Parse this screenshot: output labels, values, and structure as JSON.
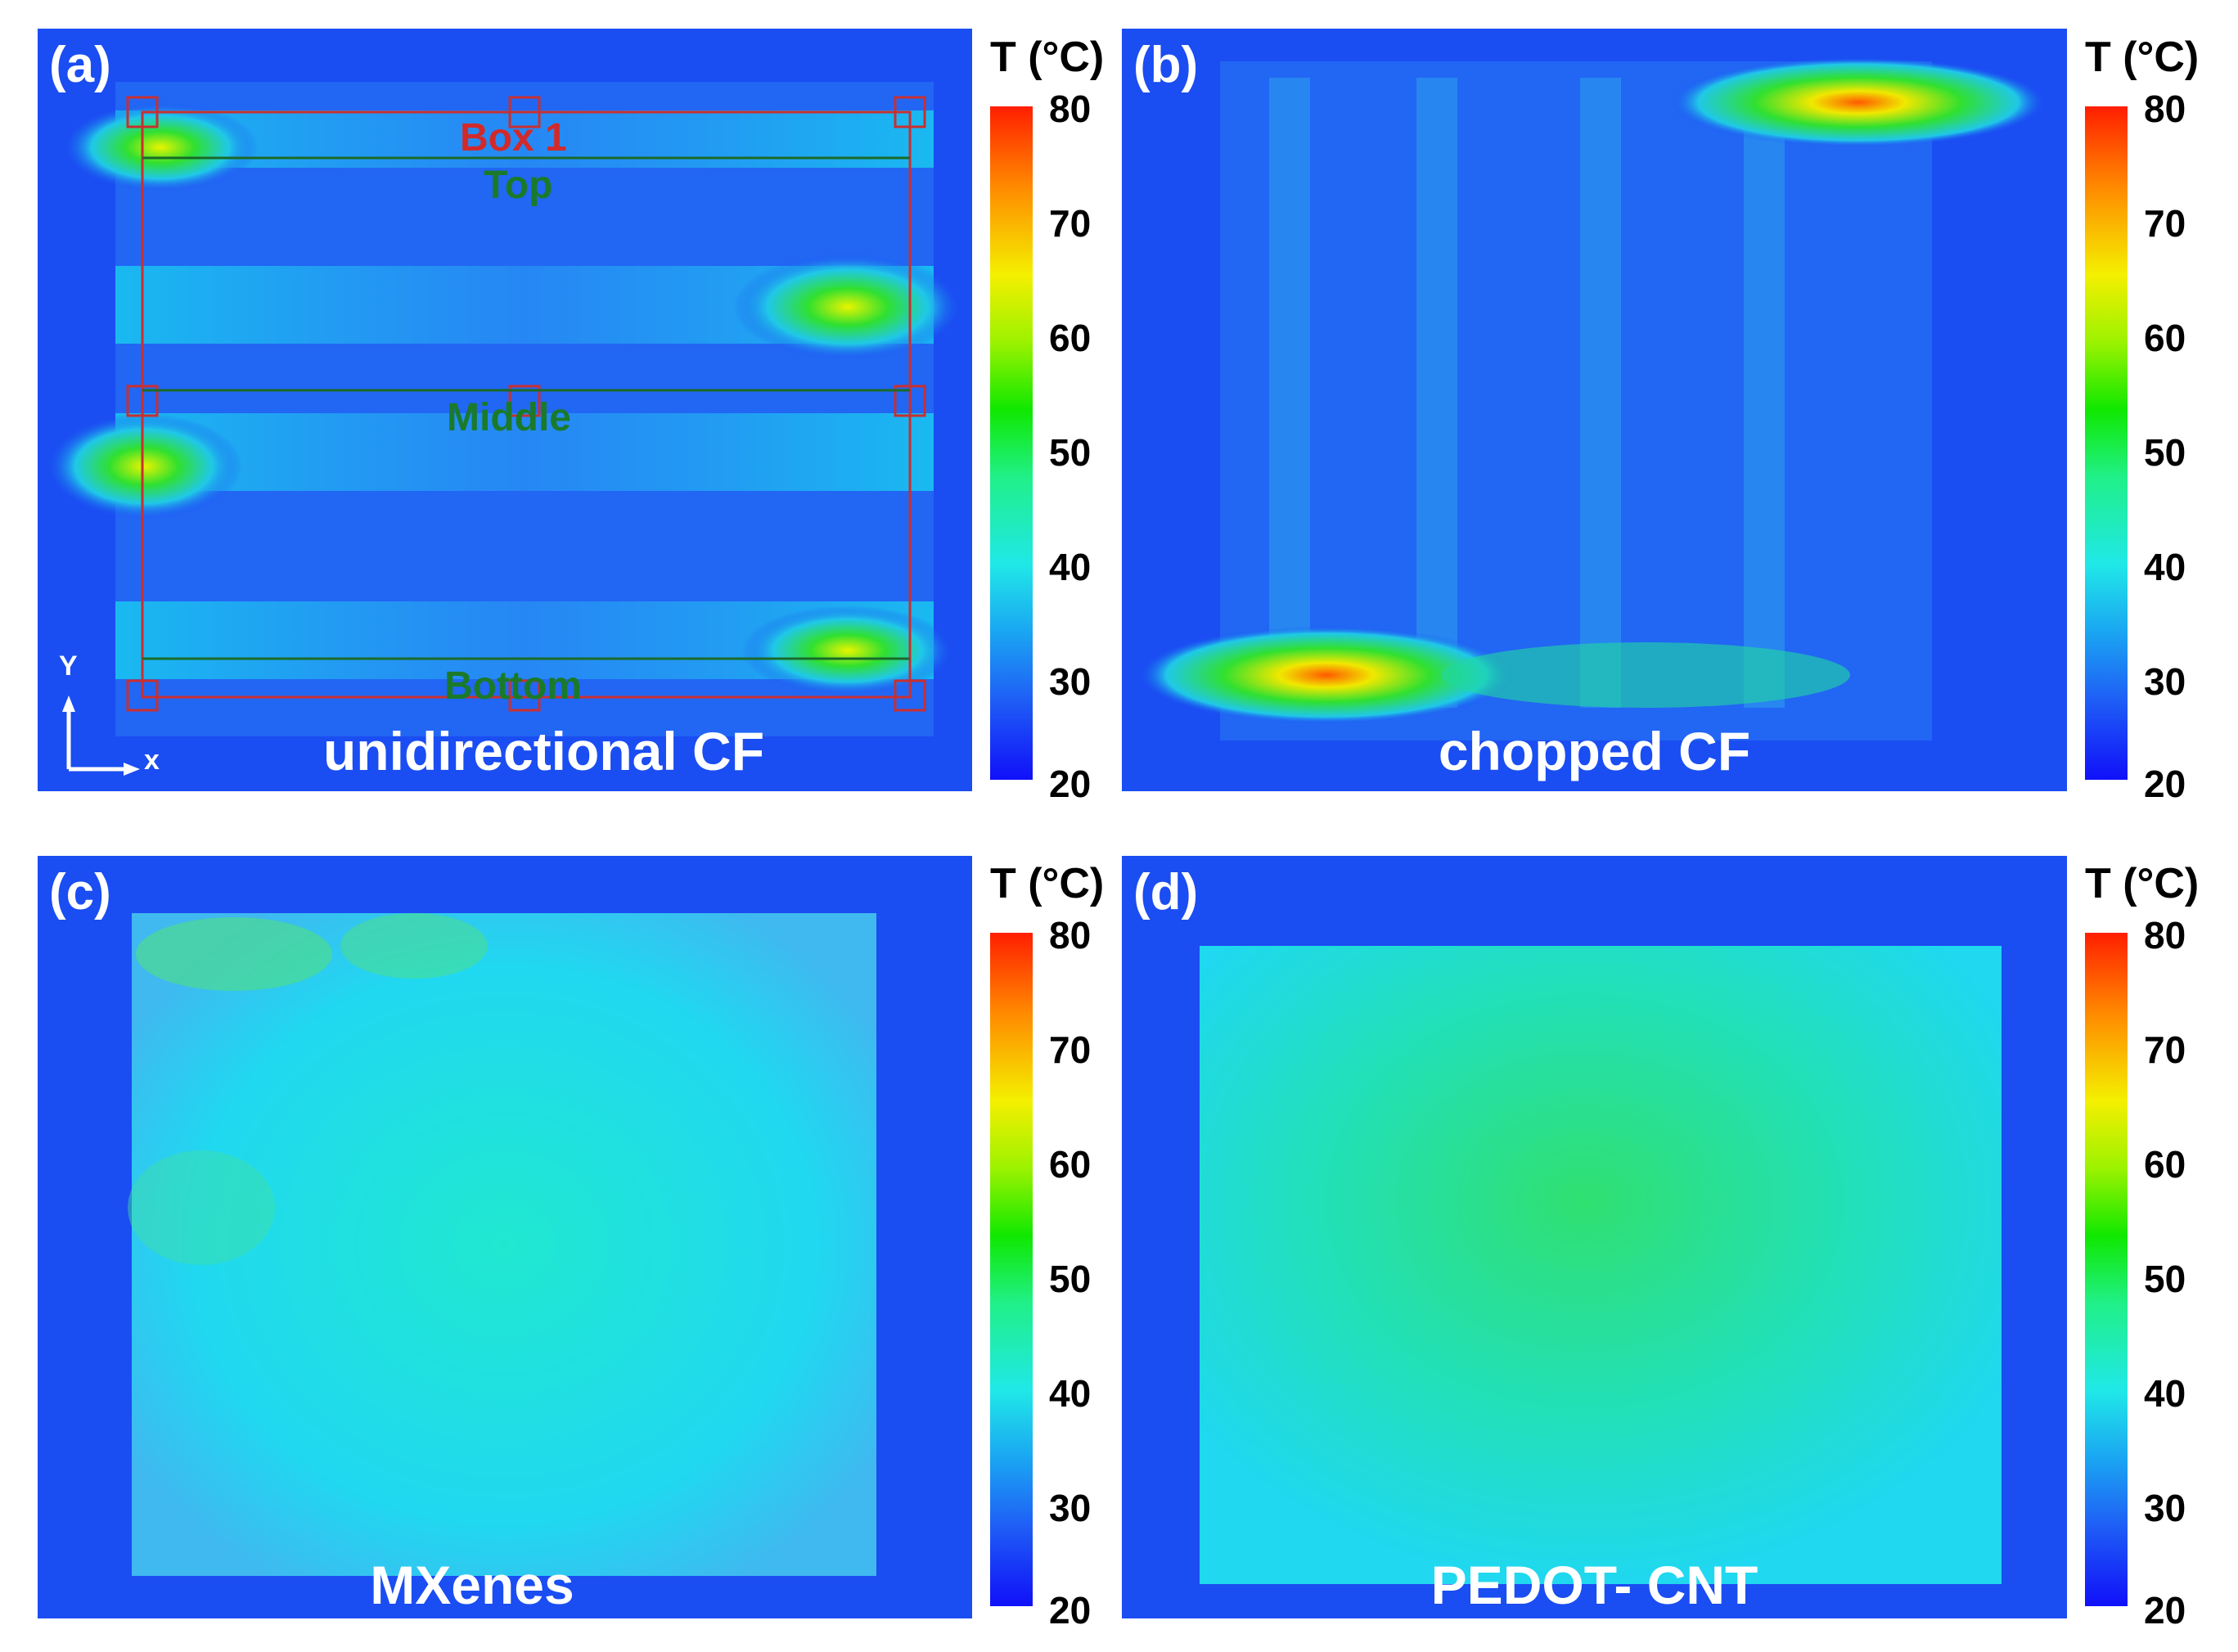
{
  "colorbar": {
    "title": "T (°C)",
    "ticks": [
      "80",
      "70",
      "60",
      "50",
      "40",
      "30",
      "20"
    ],
    "min": 20,
    "max": 80
  },
  "panels": [
    {
      "letter": "(a)",
      "caption": "unidirectional CF"
    },
    {
      "letter": "(b)",
      "caption": "chopped CF"
    },
    {
      "letter": "(c)",
      "caption": "MXenes"
    },
    {
      "letter": "(d)",
      "caption": "PEDOT- CNT"
    }
  ],
  "annotations": {
    "box": "Box 1",
    "top": "Top",
    "middle": "Middle",
    "bottom": "Bottom",
    "axis_y": "Y",
    "axis_x": "x"
  }
}
